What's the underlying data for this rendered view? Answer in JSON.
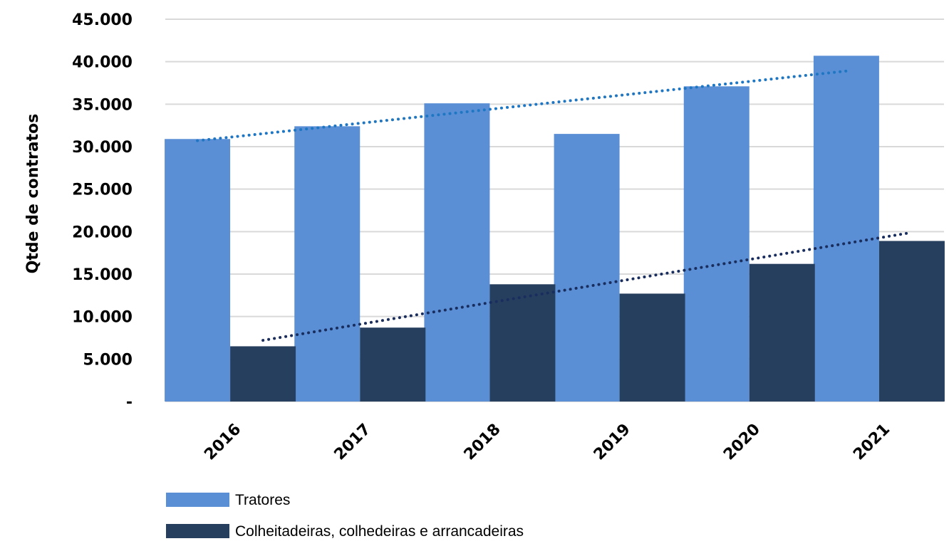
{
  "chart_data": {
    "type": "bar",
    "categories": [
      "2016",
      "2017",
      "2018",
      "2019",
      "2020",
      "2021"
    ],
    "series": [
      {
        "name": "Tratores",
        "color": "#5a8fd6",
        "values": [
          30900,
          32400,
          35100,
          31500,
          37100,
          40700
        ]
      },
      {
        "name": "Colheitadeiras, colhedeiras e arrancadeiras",
        "color": "#273f5f",
        "values": [
          6500,
          8700,
          13800,
          12700,
          16200,
          18900
        ]
      }
    ],
    "trendlines": [
      {
        "series": "Tratores",
        "color": "#1f77c4",
        "style": "dotted",
        "start": 30700,
        "end": 38900
      },
      {
        "series": "Colheitadeiras, colhedeiras e arrancadeiras",
        "color": "#1a2e5e",
        "style": "dotted",
        "start": 7200,
        "end": 19900
      }
    ],
    "title": "",
    "xlabel": "",
    "ylabel": "Qtde de contratos",
    "ylim": [
      0,
      45000
    ],
    "yticks": [
      "-",
      "5.000",
      "10.000",
      "15.000",
      "20.000",
      "25.000",
      "30.000",
      "35.000",
      "40.000",
      "45.000"
    ],
    "grid": true,
    "legend": "bottom-left"
  }
}
